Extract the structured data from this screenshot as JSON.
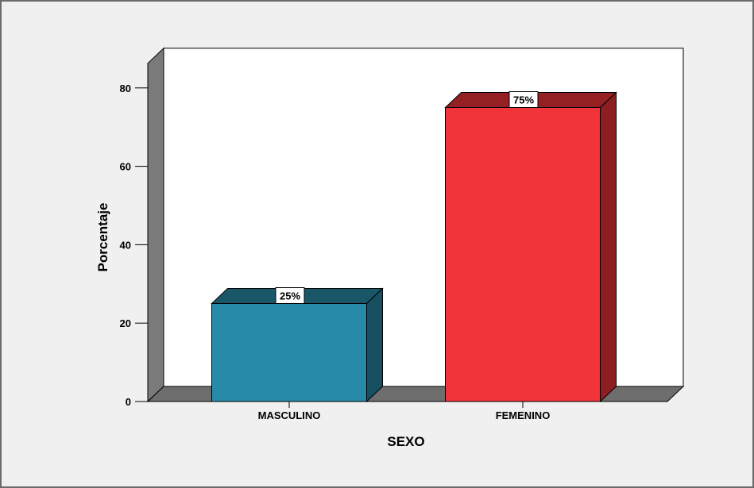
{
  "chart_data": {
    "type": "bar",
    "style": "3d",
    "categories": [
      "MASCULINO",
      "FEMENINO"
    ],
    "values": [
      25,
      75
    ],
    "data_labels": [
      "25%",
      "75%"
    ],
    "bar_colors": [
      "#268aa8",
      "#f1333a"
    ],
    "xlabel": "SEXO",
    "ylabel": "Porcentaje",
    "yticks": [
      0,
      20,
      40,
      60,
      80
    ],
    "ylim": [
      0,
      80
    ],
    "grid": false,
    "legend": "none"
  },
  "colors": {
    "background": "#f0f0f0",
    "plot_area": "#ffffff",
    "wall": "#7a7a7a",
    "floor": "#6e6e6e",
    "frame": "#6b6b6b"
  }
}
